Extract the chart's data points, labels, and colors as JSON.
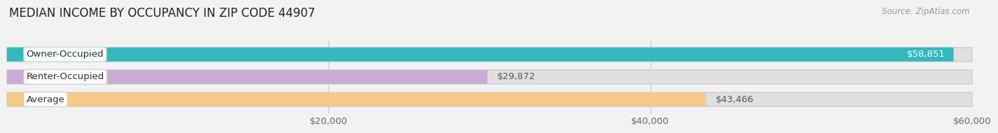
{
  "title": "MEDIAN INCOME BY OCCUPANCY IN ZIP CODE 44907",
  "source": "Source: ZipAtlas.com",
  "categories": [
    "Owner-Occupied",
    "Renter-Occupied",
    "Average"
  ],
  "values": [
    58851,
    29872,
    43466
  ],
  "bar_colors": [
    "#35b8be",
    "#c9acd4",
    "#f5c98a"
  ],
  "value_labels": [
    "$58,851",
    "$29,872",
    "$43,466"
  ],
  "xmin": 0,
  "xmax": 60000,
  "xticks": [
    20000,
    40000,
    60000
  ],
  "xtick_labels": [
    "$20,000",
    "$40,000",
    "$60,000"
  ],
  "bar_height": 0.62,
  "background_color": "#f2f2f2",
  "bar_bg_color": "#e0e0e0",
  "title_fontsize": 12,
  "tick_fontsize": 9.5,
  "label_fontsize": 9.5,
  "value_fontsize": 9.5,
  "source_fontsize": 8.5
}
